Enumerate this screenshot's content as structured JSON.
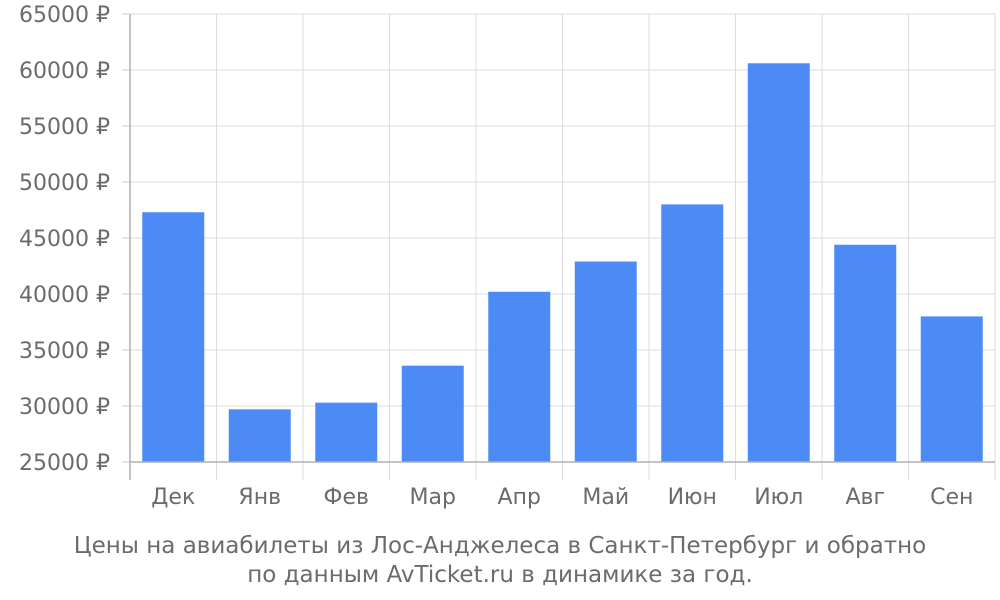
{
  "chart_data": {
    "type": "bar",
    "categories": [
      "Дек",
      "Янв",
      "Фев",
      "Мар",
      "Апр",
      "Май",
      "Июн",
      "Июл",
      "Авг",
      "Сен"
    ],
    "values": [
      47300,
      29700,
      30300,
      33600,
      40200,
      42900,
      48000,
      60600,
      44400,
      38000
    ],
    "ylim": [
      25000,
      65000
    ],
    "yticks": [
      25000,
      30000,
      35000,
      40000,
      45000,
      50000,
      55000,
      60000,
      65000
    ],
    "ytick_labels": [
      "25000 ₽",
      "30000 ₽",
      "35000 ₽",
      "40000 ₽",
      "45000 ₽",
      "50000 ₽",
      "55000 ₽",
      "60000 ₽",
      "65000 ₽"
    ],
    "grid": true,
    "bar_color": "#4c8bf5"
  },
  "caption": {
    "line1": "Цены на авиабилеты из Лос-Анджелеса в Санкт-Петербург и обратно",
    "line2": "по данным AvTicket.ru в динамике за год."
  }
}
